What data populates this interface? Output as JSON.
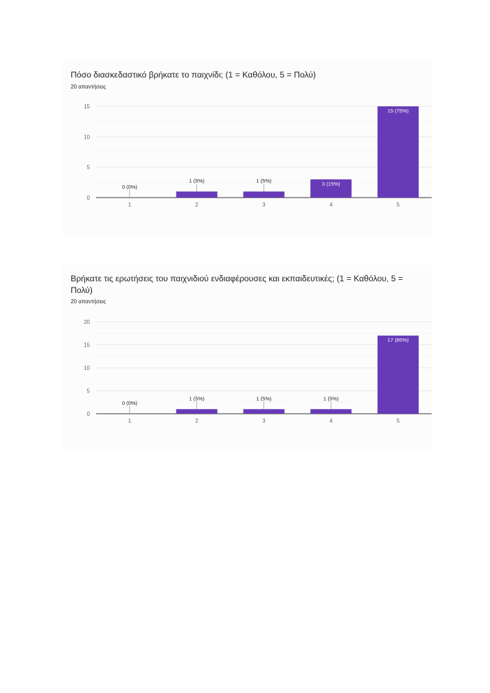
{
  "accent": "#673ab7",
  "chart_data": [
    {
      "type": "bar",
      "title": "Πόσο διασκεδαστικό βρήκατε το παιχνίδι;  (1 = Καθόλου, 5 = Πολύ)",
      "subtitle": "20 απαντήσεις",
      "categories": [
        "1",
        "2",
        "3",
        "4",
        "5"
      ],
      "values": [
        0,
        1,
        1,
        3,
        15
      ],
      "data_labels": [
        "0 (0%)",
        "1 (5%)",
        "1 (5%)",
        "3 (15%)",
        "15 (75%)"
      ],
      "yticks": [
        0,
        5,
        10,
        15
      ],
      "ylim": [
        0,
        15
      ],
      "grid": true
    },
    {
      "type": "bar",
      "title": "Βρήκατε τις ερωτήσεις του παιχνιδιού ενδιαφέρουσες και εκπαιδευτικές;  (1 = Καθόλου, 5 = Πολύ)",
      "subtitle": "20 απαντήσεις",
      "categories": [
        "1",
        "2",
        "3",
        "4",
        "5"
      ],
      "values": [
        0,
        1,
        1,
        1,
        17
      ],
      "data_labels": [
        "0 (0%)",
        "1 (5%)",
        "1 (5%)",
        "1 (5%)",
        "17 (85%)"
      ],
      "yticks": [
        0,
        5,
        10,
        15,
        20
      ],
      "ylim": [
        0,
        20
      ],
      "grid": true
    }
  ]
}
